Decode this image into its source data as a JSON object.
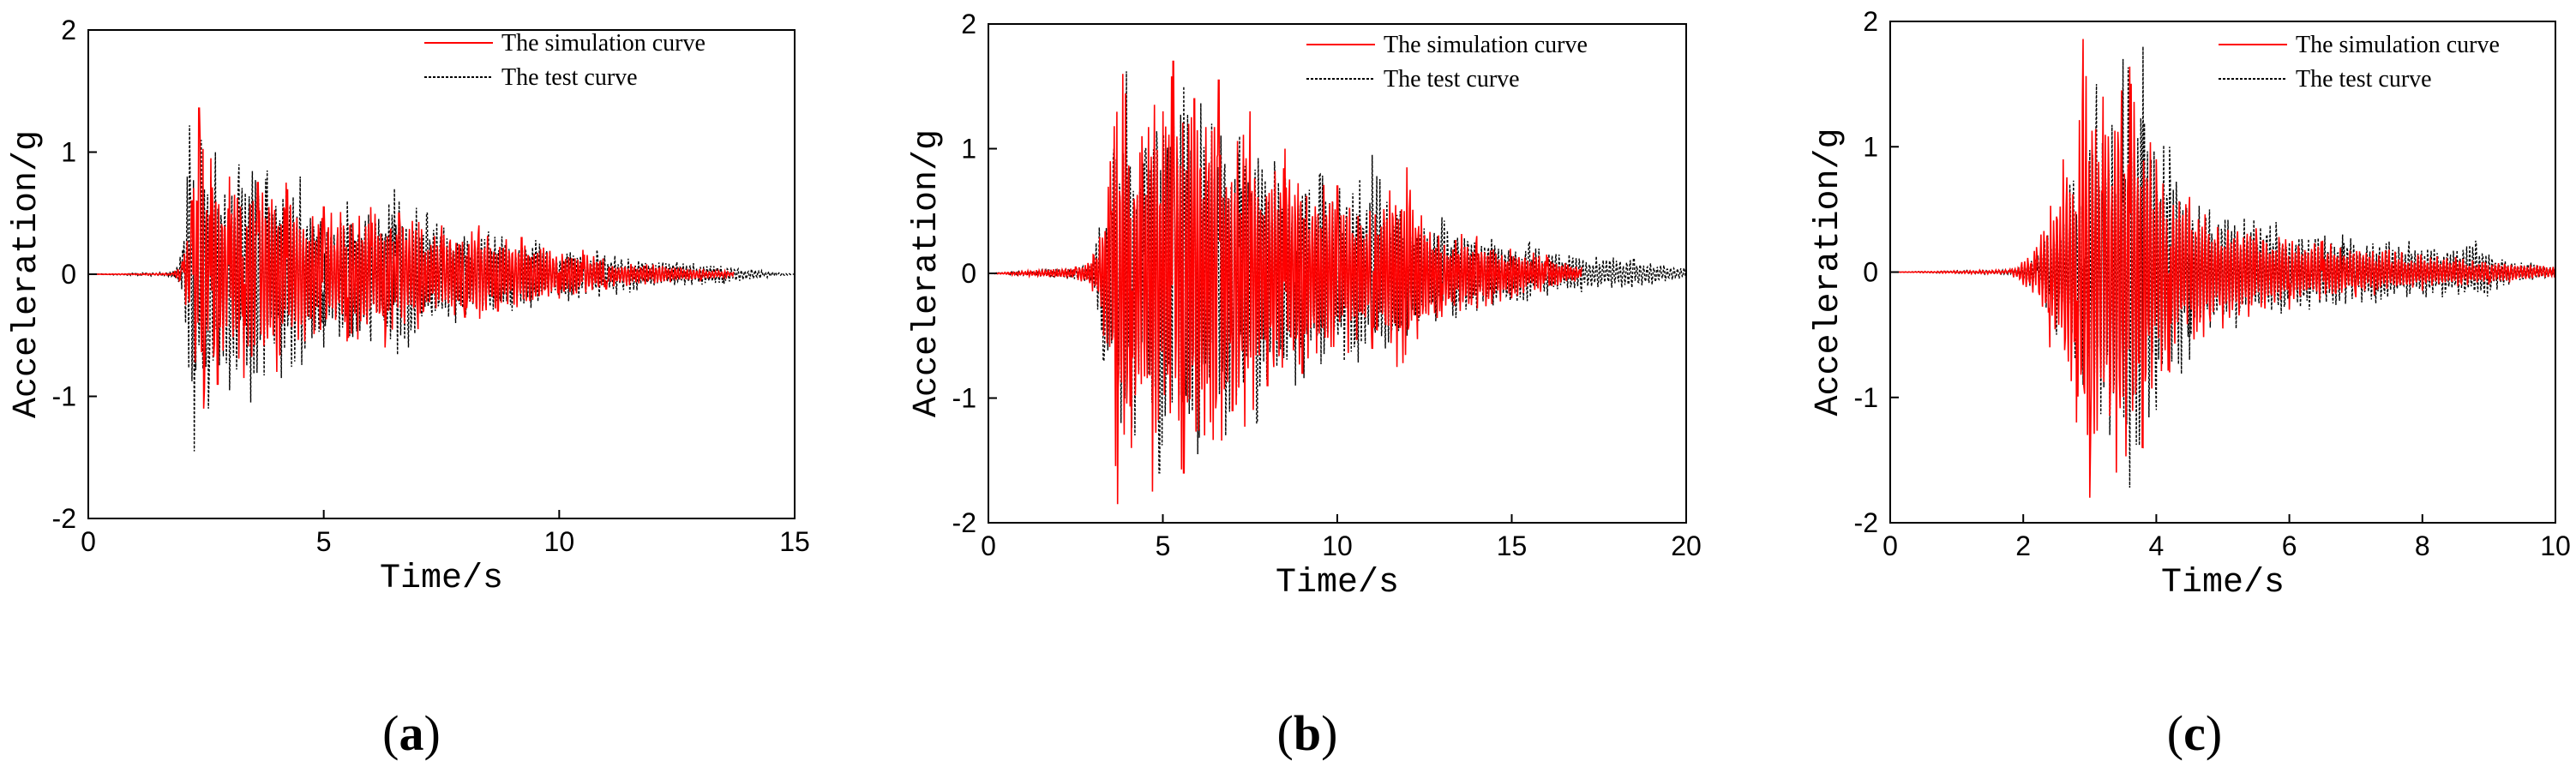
{
  "chart_data": [
    {
      "type": "line",
      "panel_label": "a",
      "title": "",
      "xlabel": "Time/s",
      "ylabel": "Acceleration/g",
      "xlim": [
        0,
        15
      ],
      "ylim": [
        -2,
        2
      ],
      "xticks": [
        0,
        5,
        10,
        15
      ],
      "yticks": [
        -2,
        -1,
        0,
        1,
        2
      ],
      "grid": false,
      "legend_position": "top-right",
      "series": [
        {
          "name": "The simulation curve",
          "color": "#ff0000",
          "style": "solid",
          "points": [
            [
              0,
              0
            ],
            [
              1.8,
              0.01
            ],
            [
              2.0,
              0.1
            ],
            [
              2.2,
              0.6
            ],
            [
              2.35,
              1.36
            ],
            [
              2.45,
              -1.1
            ],
            [
              2.6,
              0.95
            ],
            [
              2.75,
              -0.9
            ],
            [
              3.0,
              0.8
            ],
            [
              3.3,
              -0.85
            ],
            [
              3.6,
              0.75
            ],
            [
              4.0,
              -0.8
            ],
            [
              4.2,
              0.75
            ],
            [
              4.6,
              -0.55
            ],
            [
              5.0,
              0.55
            ],
            [
              5.5,
              -0.55
            ],
            [
              6.0,
              0.55
            ],
            [
              6.3,
              -0.6
            ],
            [
              6.6,
              0.5
            ],
            [
              7.0,
              -0.45
            ],
            [
              7.5,
              0.4
            ],
            [
              8.0,
              -0.35
            ],
            [
              8.3,
              0.4
            ],
            [
              8.7,
              -0.3
            ],
            [
              9.2,
              0.3
            ],
            [
              10.0,
              -0.2
            ],
            [
              10.5,
              0.2
            ],
            [
              11.0,
              -0.12
            ],
            [
              12.0,
              0.08
            ],
            [
              13.0,
              -0.05
            ],
            [
              13.7,
              0.02
            ]
          ]
        },
        {
          "name": "The test curve",
          "color": "#000000",
          "style": "dashed",
          "points": [
            [
              0,
              0
            ],
            [
              1.8,
              0.02
            ],
            [
              2.0,
              0.2
            ],
            [
              2.1,
              0.8
            ],
            [
              2.15,
              1.22
            ],
            [
              2.25,
              -1.45
            ],
            [
              2.4,
              1.1
            ],
            [
              2.55,
              -1.1
            ],
            [
              2.7,
              1.0
            ],
            [
              3.0,
              -0.95
            ],
            [
              3.2,
              0.9
            ],
            [
              3.45,
              -1.05
            ],
            [
              3.8,
              0.85
            ],
            [
              4.1,
              -0.85
            ],
            [
              4.5,
              0.8
            ],
            [
              5.0,
              -0.6
            ],
            [
              5.5,
              0.6
            ],
            [
              6.0,
              -0.55
            ],
            [
              6.5,
              0.7
            ],
            [
              6.8,
              -0.6
            ],
            [
              7.2,
              0.5
            ],
            [
              7.8,
              -0.4
            ],
            [
              8.5,
              0.35
            ],
            [
              9.0,
              -0.3
            ],
            [
              9.5,
              0.28
            ],
            [
              10.2,
              -0.22
            ],
            [
              10.8,
              0.2
            ],
            [
              11.5,
              -0.15
            ],
            [
              12.5,
              0.1
            ],
            [
              13.5,
              -0.08
            ],
            [
              15.0,
              0.0
            ]
          ]
        }
      ]
    },
    {
      "type": "line",
      "panel_label": "b",
      "title": "",
      "xlabel": "Time/s",
      "ylabel": "Acceleration/g",
      "xlim": [
        0,
        20
      ],
      "ylim": [
        -2,
        2
      ],
      "xticks": [
        0,
        5,
        10,
        15,
        20
      ],
      "yticks": [
        -2,
        -1,
        0,
        1,
        2
      ],
      "grid": false,
      "legend_position": "top-right",
      "series": [
        {
          "name": "The simulation curve",
          "color": "#ff0000",
          "style": "solid",
          "points": [
            [
              0,
              0
            ],
            [
              2.5,
              0.05
            ],
            [
              3.0,
              0.15
            ],
            [
              3.3,
              -0.5
            ],
            [
              3.5,
              0.9
            ],
            [
              3.7,
              -1.85
            ],
            [
              3.85,
              1.6
            ],
            [
              4.1,
              -1.4
            ],
            [
              4.4,
              1.1
            ],
            [
              4.7,
              -1.75
            ],
            [
              5.0,
              1.3
            ],
            [
              5.3,
              1.7
            ],
            [
              5.6,
              -1.6
            ],
            [
              5.9,
              1.4
            ],
            [
              6.2,
              -1.3
            ],
            [
              6.6,
              1.55
            ],
            [
              7.0,
              -1.1
            ],
            [
              7.5,
              1.3
            ],
            [
              8.0,
              -0.9
            ],
            [
              8.5,
              1.0
            ],
            [
              9.0,
              -0.8
            ],
            [
              10.0,
              0.7
            ],
            [
              11.0,
              -0.6
            ],
            [
              12.0,
              0.85
            ],
            [
              13.0,
              -0.35
            ],
            [
              14.0,
              0.3
            ],
            [
              15.0,
              -0.2
            ],
            [
              16.0,
              0.15
            ],
            [
              17.0,
              0.05
            ]
          ]
        },
        {
          "name": "The test curve",
          "color": "#000000",
          "style": "dashed",
          "points": [
            [
              0,
              0
            ],
            [
              2.5,
              0.05
            ],
            [
              3.0,
              0.1
            ],
            [
              3.3,
              -0.7
            ],
            [
              3.6,
              1.0
            ],
            [
              3.8,
              -1.2
            ],
            [
              3.95,
              1.62
            ],
            [
              4.2,
              -1.3
            ],
            [
              4.5,
              1.0
            ],
            [
              4.9,
              -1.6
            ],
            [
              5.3,
              1.3
            ],
            [
              5.6,
              1.5
            ],
            [
              6.0,
              -1.45
            ],
            [
              6.4,
              1.2
            ],
            [
              6.8,
              -1.3
            ],
            [
              7.2,
              1.1
            ],
            [
              7.7,
              -1.2
            ],
            [
              8.2,
              0.9
            ],
            [
              8.8,
              -0.9
            ],
            [
              9.5,
              0.8
            ],
            [
              10.2,
              -0.7
            ],
            [
              11.0,
              0.95
            ],
            [
              12.0,
              -0.5
            ],
            [
              13.0,
              0.45
            ],
            [
              14.0,
              -0.3
            ],
            [
              15.5,
              0.25
            ],
            [
              17.0,
              -0.15
            ],
            [
              18.5,
              0.12
            ],
            [
              20.0,
              -0.05
            ]
          ]
        }
      ]
    },
    {
      "type": "line",
      "panel_label": "c",
      "title": "",
      "xlabel": "Time/s",
      "ylabel": "Acceleration/g",
      "xlim": [
        0,
        10
      ],
      "ylim": [
        -2,
        2
      ],
      "xticks": [
        0,
        2,
        4,
        6,
        8,
        10
      ],
      "yticks": [
        -2,
        -1,
        0,
        1,
        2
      ],
      "grid": false,
      "legend_position": "top-right",
      "series": [
        {
          "name": "The simulation curve",
          "color": "#ff0000",
          "style": "solid",
          "points": [
            [
              0,
              0
            ],
            [
              1.8,
              0.02
            ],
            [
              2.2,
              0.2
            ],
            [
              2.4,
              -0.6
            ],
            [
              2.6,
              0.9
            ],
            [
              2.8,
              -1.2
            ],
            [
              2.9,
              1.86
            ],
            [
              3.0,
              -1.8
            ],
            [
              3.2,
              1.4
            ],
            [
              3.4,
              -1.6
            ],
            [
              3.6,
              1.64
            ],
            [
              3.8,
              -1.4
            ],
            [
              4.0,
              0.9
            ],
            [
              4.2,
              -0.8
            ],
            [
              4.5,
              0.6
            ],
            [
              5.0,
              -0.45
            ],
            [
              5.5,
              0.35
            ],
            [
              6.0,
              -0.3
            ],
            [
              6.5,
              0.25
            ],
            [
              7.0,
              -0.2
            ],
            [
              7.5,
              0.18
            ],
            [
              8.0,
              -0.15
            ],
            [
              8.5,
              0.12
            ],
            [
              9.0,
              -0.1
            ],
            [
              10.0,
              0.05
            ]
          ]
        },
        {
          "name": "The test curve",
          "color": "#000000",
          "style": "dashed",
          "points": [
            [
              0,
              0
            ],
            [
              1.8,
              0.02
            ],
            [
              2.2,
              0.15
            ],
            [
              2.5,
              -0.5
            ],
            [
              2.7,
              0.7
            ],
            [
              2.9,
              -0.9
            ],
            [
              3.1,
              1.5
            ],
            [
              3.3,
              -1.3
            ],
            [
              3.5,
              1.7
            ],
            [
              3.6,
              -1.72
            ],
            [
              3.8,
              1.8
            ],
            [
              4.0,
              -1.1
            ],
            [
              4.2,
              1.0
            ],
            [
              4.5,
              -0.7
            ],
            [
              4.8,
              0.5
            ],
            [
              5.2,
              -0.45
            ],
            [
              5.8,
              0.4
            ],
            [
              6.3,
              -0.3
            ],
            [
              6.8,
              0.3
            ],
            [
              7.3,
              -0.25
            ],
            [
              7.8,
              0.25
            ],
            [
              8.3,
              -0.2
            ],
            [
              8.8,
              0.25
            ],
            [
              9.3,
              -0.1
            ],
            [
              10.0,
              0.05
            ]
          ]
        }
      ]
    }
  ]
}
